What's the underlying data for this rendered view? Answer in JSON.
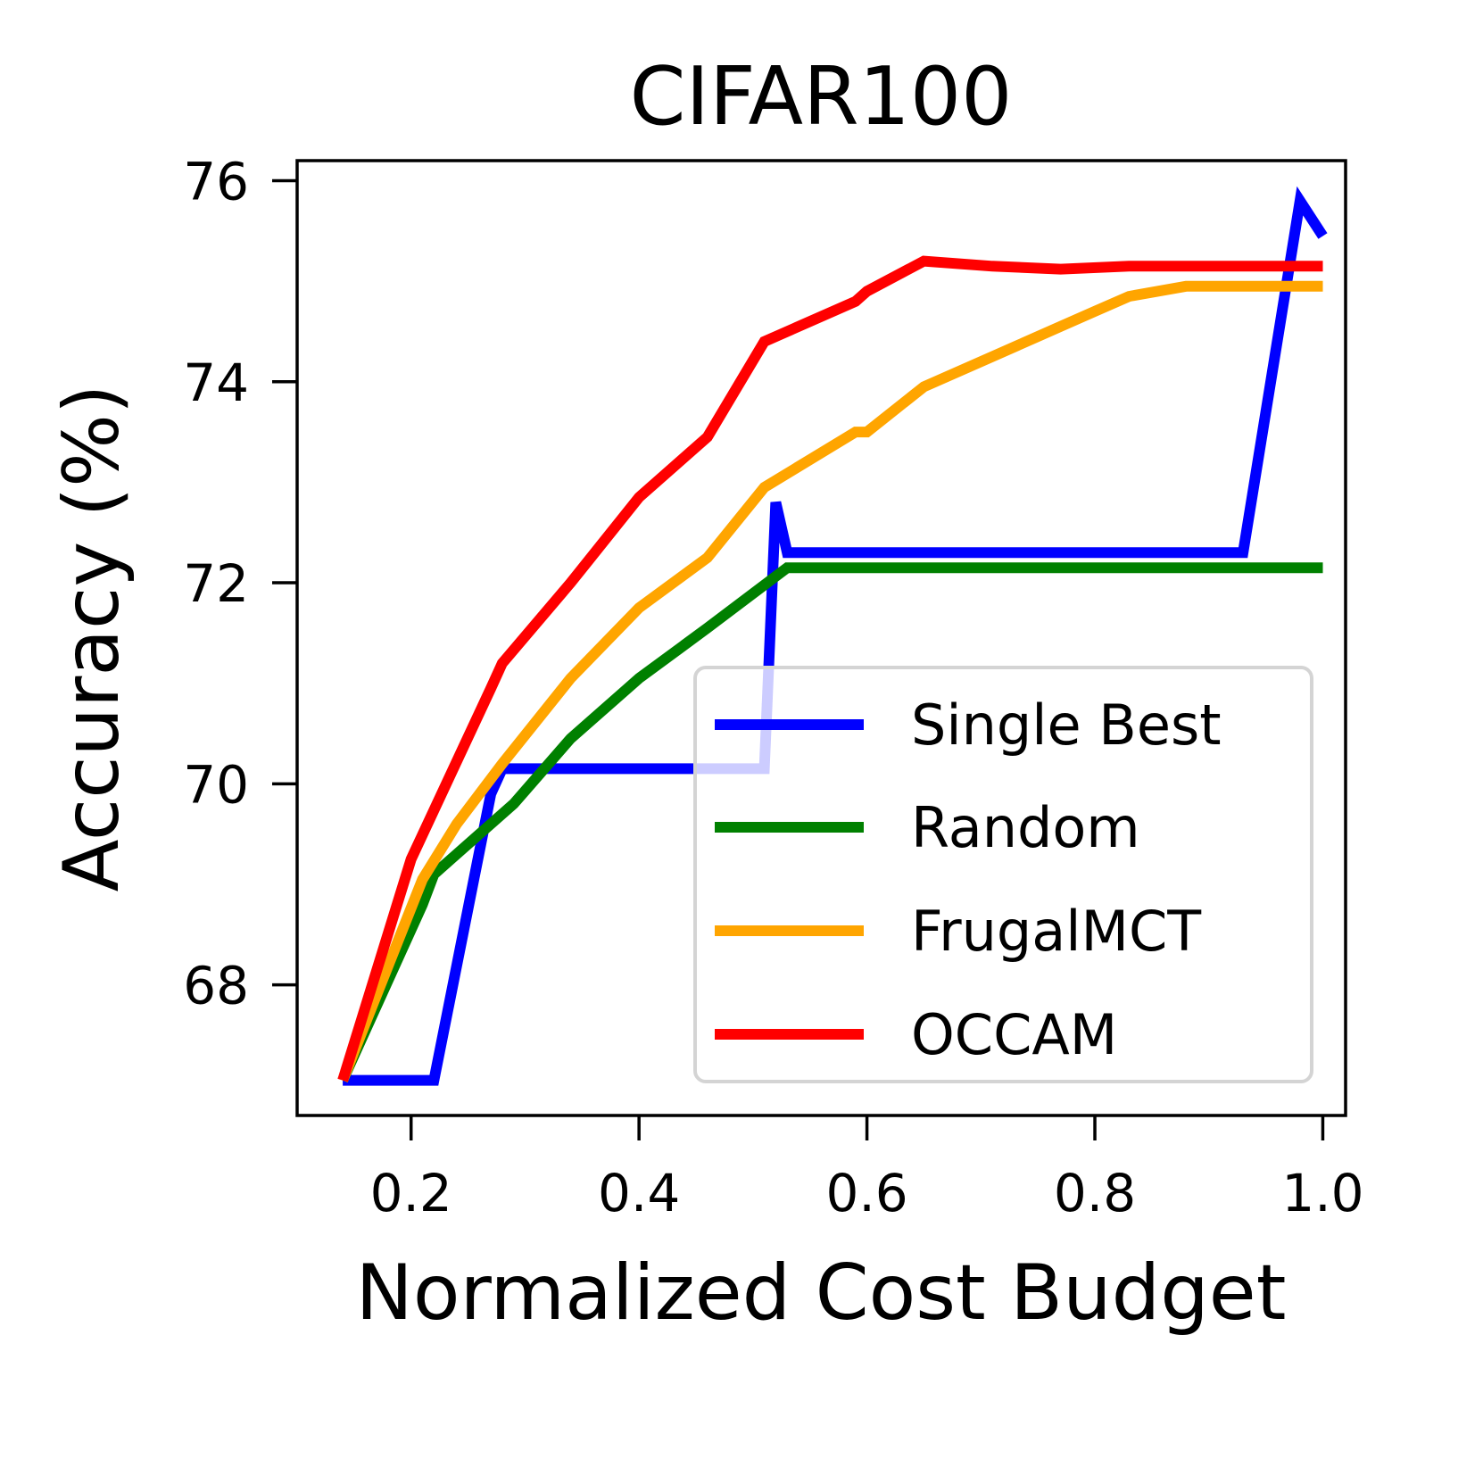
{
  "chart_data": {
    "type": "line",
    "title": "CIFAR100",
    "xlabel": "Normalized Cost Budget",
    "ylabel": "Accuracy (%)",
    "xlim": [
      0.1,
      1.02
    ],
    "ylim": [
      66.7,
      76.2
    ],
    "xticks": [
      0.2,
      0.4,
      0.6,
      0.8,
      1.0
    ],
    "xtick_labels": [
      "0.2",
      "0.4",
      "0.6",
      "0.8",
      "1.0"
    ],
    "yticks": [
      68,
      70,
      72,
      74,
      76
    ],
    "ytick_labels": [
      "68",
      "70",
      "72",
      "74",
      "76"
    ],
    "legend_position": "lower-right",
    "series": [
      {
        "name": "Single Best",
        "color": "#0000ff",
        "x": [
          0.14,
          0.22,
          0.27,
          0.28,
          0.4,
          0.51,
          0.52,
          0.53,
          0.93,
          0.98,
          1.0
        ],
        "y": [
          67.05,
          67.05,
          69.9,
          70.15,
          70.15,
          70.15,
          72.8,
          72.3,
          72.3,
          75.8,
          75.45
        ]
      },
      {
        "name": "Random",
        "color": "#008000",
        "x": [
          0.14,
          0.21,
          0.22,
          0.29,
          0.34,
          0.4,
          0.46,
          0.53,
          1.0
        ],
        "y": [
          67.05,
          68.8,
          69.1,
          69.8,
          70.45,
          71.05,
          71.55,
          72.15,
          72.15
        ]
      },
      {
        "name": "FrugalMCT",
        "color": "#ffa500",
        "x": [
          0.14,
          0.21,
          0.24,
          0.28,
          0.34,
          0.4,
          0.46,
          0.51,
          0.59,
          0.6,
          0.65,
          0.71,
          0.77,
          0.8,
          0.83,
          0.88,
          0.95,
          1.0
        ],
        "y": [
          67.05,
          69.05,
          69.6,
          70.2,
          71.05,
          71.75,
          72.25,
          72.95,
          73.5,
          73.5,
          73.95,
          74.25,
          74.55,
          74.7,
          74.85,
          74.95,
          74.95,
          74.95
        ]
      },
      {
        "name": "OCCAM",
        "color": "#ff0000",
        "x": [
          0.14,
          0.2,
          0.27,
          0.28,
          0.34,
          0.4,
          0.46,
          0.51,
          0.52,
          0.59,
          0.6,
          0.65,
          0.71,
          0.77,
          0.83,
          1.0
        ],
        "y": [
          67.05,
          69.25,
          70.95,
          71.2,
          72.0,
          72.85,
          73.45,
          74.4,
          74.45,
          74.8,
          74.9,
          75.2,
          75.15,
          75.12,
          75.15,
          75.15
        ]
      }
    ]
  }
}
